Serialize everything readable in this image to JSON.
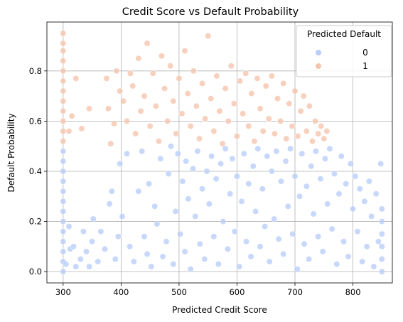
{
  "chart_data": {
    "type": "scatter",
    "title": "Credit Score vs Default Probability",
    "xlabel": "Predicted Credit Score",
    "ylabel": "Default Probability",
    "xlim": [
      272,
      868
    ],
    "ylim": [
      -0.045,
      0.995
    ],
    "xticks": [
      300,
      400,
      500,
      600,
      700,
      800
    ],
    "yticks": [
      0.0,
      0.2,
      0.4,
      0.6,
      0.8
    ],
    "ytick_labels": [
      "0.0",
      "0.2",
      "0.4",
      "0.6",
      "0.8"
    ],
    "grid": true,
    "legend": {
      "title": "Predicted Default",
      "placement": "top-right",
      "entries": [
        {
          "label": "0",
          "color": "#b8cdf8"
        },
        {
          "label": "1",
          "color": "#f5c4ac"
        }
      ]
    },
    "series": [
      {
        "name": "0",
        "color": "#b8cdf8",
        "points": [
          [
            300,
            0.0
          ],
          [
            300,
            0.04
          ],
          [
            300,
            0.08
          ],
          [
            300,
            0.12
          ],
          [
            300,
            0.16
          ],
          [
            300,
            0.2
          ],
          [
            300,
            0.24
          ],
          [
            300,
            0.28
          ],
          [
            300,
            0.32
          ],
          [
            300,
            0.36
          ],
          [
            300,
            0.4
          ],
          [
            300,
            0.44
          ],
          [
            300,
            0.48
          ],
          [
            305,
            0.03
          ],
          [
            310,
            0.18
          ],
          [
            312,
            0.09
          ],
          [
            318,
            0.1
          ],
          [
            322,
            0.02
          ],
          [
            330,
            0.05
          ],
          [
            335,
            0.16
          ],
          [
            340,
            0.08
          ],
          [
            345,
            0.02
          ],
          [
            350,
            0.12
          ],
          [
            352,
            0.21
          ],
          [
            360,
            0.04
          ],
          [
            365,
            0.16
          ],
          [
            372,
            0.09
          ],
          [
            380,
            0.27
          ],
          [
            384,
            0.32
          ],
          [
            390,
            0.05
          ],
          [
            395,
            0.14
          ],
          [
            398,
            0.43
          ],
          [
            402,
            0.22
          ],
          [
            410,
            0.47
          ],
          [
            415,
            0.1
          ],
          [
            422,
            0.04
          ],
          [
            430,
            0.32
          ],
          [
            436,
            0.48
          ],
          [
            440,
            0.14
          ],
          [
            445,
            0.07
          ],
          [
            448,
            0.35
          ],
          [
            452,
            0.02
          ],
          [
            458,
            0.26
          ],
          [
            462,
            0.19
          ],
          [
            468,
            0.45
          ],
          [
            472,
            0.06
          ],
          [
            478,
            0.12
          ],
          [
            482,
            0.39
          ],
          [
            486,
            0.5
          ],
          [
            490,
            0.03
          ],
          [
            494,
            0.24
          ],
          [
            498,
            0.47
          ],
          [
            502,
            0.15
          ],
          [
            506,
            0.36
          ],
          [
            510,
            0.08
          ],
          [
            512,
            0.44
          ],
          [
            516,
            0.29
          ],
          [
            520,
            0.01
          ],
          [
            524,
            0.41
          ],
          [
            528,
            0.22
          ],
          [
            532,
            0.48
          ],
          [
            536,
            0.11
          ],
          [
            540,
            0.33
          ],
          [
            544,
            0.05
          ],
          [
            548,
            0.4
          ],
          [
            552,
            0.27
          ],
          [
            556,
            0.46
          ],
          [
            560,
            0.14
          ],
          [
            564,
            0.37
          ],
          [
            568,
            0.03
          ],
          [
            572,
            0.43
          ],
          [
            576,
            0.2
          ],
          [
            580,
            0.49
          ],
          [
            584,
            0.09
          ],
          [
            588,
            0.31
          ],
          [
            592,
            0.45
          ],
          [
            596,
            0.16
          ],
          [
            600,
            0.38
          ],
          [
            604,
            0.02
          ],
          [
            608,
            0.28
          ],
          [
            612,
            0.47
          ],
          [
            616,
            0.12
          ],
          [
            620,
            0.35
          ],
          [
            624,
            0.06
          ],
          [
            628,
            0.42
          ],
          [
            632,
            0.24
          ],
          [
            636,
            0.49
          ],
          [
            640,
            0.1
          ],
          [
            644,
            0.33
          ],
          [
            648,
            0.18
          ],
          [
            652,
            0.46
          ],
          [
            656,
            0.04
          ],
          [
            660,
            0.4
          ],
          [
            664,
            0.21
          ],
          [
            668,
            0.48
          ],
          [
            672,
            0.13
          ],
          [
            676,
            0.36
          ],
          [
            680,
            0.07
          ],
          [
            684,
            0.44
          ],
          [
            688,
            0.26
          ],
          [
            692,
            0.49
          ],
          [
            696,
            0.15
          ],
          [
            700,
            0.38
          ],
          [
            704,
            0.01
          ],
          [
            708,
            0.3
          ],
          [
            712,
            0.47
          ],
          [
            716,
            0.11
          ],
          [
            720,
            0.34
          ],
          [
            724,
            0.05
          ],
          [
            728,
            0.42
          ],
          [
            732,
            0.23
          ],
          [
            736,
            0.48
          ],
          [
            740,
            0.14
          ],
          [
            744,
            0.37
          ],
          [
            748,
            0.08
          ],
          [
            752,
            0.45
          ],
          [
            756,
            0.27
          ],
          [
            760,
            0.49
          ],
          [
            764,
            0.17
          ],
          [
            768,
            0.39
          ],
          [
            772,
            0.03
          ],
          [
            776,
            0.31
          ],
          [
            780,
            0.46
          ],
          [
            784,
            0.12
          ],
          [
            788,
            0.35
          ],
          [
            792,
            0.06
          ],
          [
            796,
            0.43
          ],
          [
            800,
            0.25
          ],
          [
            804,
            0.38
          ],
          [
            808,
            0.16
          ],
          [
            812,
            0.33
          ],
          [
            816,
            0.04
          ],
          [
            820,
            0.28
          ],
          [
            824,
            0.1
          ],
          [
            828,
            0.36
          ],
          [
            832,
            0.22
          ],
          [
            836,
            0.02
          ],
          [
            840,
            0.31
          ],
          [
            844,
            0.12
          ],
          [
            848,
            0.43
          ],
          [
            850,
            0.0
          ],
          [
            850,
            0.05
          ],
          [
            850,
            0.1
          ],
          [
            850,
            0.15
          ],
          [
            850,
            0.2
          ],
          [
            850,
            0.25
          ]
        ]
      },
      {
        "name": "1",
        "color": "#f5c4ac",
        "points": [
          [
            300,
            0.52
          ],
          [
            300,
            0.56
          ],
          [
            300,
            0.6
          ],
          [
            300,
            0.64
          ],
          [
            300,
            0.68
          ],
          [
            300,
            0.72
          ],
          [
            300,
            0.76
          ],
          [
            300,
            0.8
          ],
          [
            300,
            0.84
          ],
          [
            300,
            0.88
          ],
          [
            300,
            0.91
          ],
          [
            300,
            0.95
          ],
          [
            310,
            0.56
          ],
          [
            315,
            0.62
          ],
          [
            322,
            0.77
          ],
          [
            332,
            0.57
          ],
          [
            345,
            0.65
          ],
          [
            375,
            0.77
          ],
          [
            378,
            0.65
          ],
          [
            382,
            0.51
          ],
          [
            388,
            0.59
          ],
          [
            392,
            0.8
          ],
          [
            398,
            0.72
          ],
          [
            404,
            0.68
          ],
          [
            410,
            0.6
          ],
          [
            416,
            0.79
          ],
          [
            420,
            0.74
          ],
          [
            425,
            0.55
          ],
          [
            430,
            0.85
          ],
          [
            434,
            0.64
          ],
          [
            440,
            0.7
          ],
          [
            445,
            0.91
          ],
          [
            450,
            0.58
          ],
          [
            455,
            0.79
          ],
          [
            460,
            0.66
          ],
          [
            465,
            0.52
          ],
          [
            470,
            0.86
          ],
          [
            475,
            0.73
          ],
          [
            480,
            0.6
          ],
          [
            485,
            0.82
          ],
          [
            490,
            0.68
          ],
          [
            495,
            0.55
          ],
          [
            500,
            0.77
          ],
          [
            505,
            0.63
          ],
          [
            510,
            0.88
          ],
          [
            515,
            0.71
          ],
          [
            520,
            0.58
          ],
          [
            525,
            0.8
          ],
          [
            530,
            0.66
          ],
          [
            535,
            0.53
          ],
          [
            540,
            0.75
          ],
          [
            545,
            0.61
          ],
          [
            550,
            0.94
          ],
          [
            555,
            0.69
          ],
          [
            560,
            0.56
          ],
          [
            565,
            0.78
          ],
          [
            570,
            0.64
          ],
          [
            575,
            0.51
          ],
          [
            580,
            0.73
          ],
          [
            585,
            0.6
          ],
          [
            590,
            0.82
          ],
          [
            595,
            0.67
          ],
          [
            600,
            0.54
          ],
          [
            605,
            0.76
          ],
          [
            610,
            0.63
          ],
          [
            615,
            0.79
          ],
          [
            620,
            0.58
          ],
          [
            625,
            0.71
          ],
          [
            630,
            0.52
          ],
          [
            635,
            0.77
          ],
          [
            640,
            0.65
          ],
          [
            645,
            0.56
          ],
          [
            650,
            0.74
          ],
          [
            655,
            0.61
          ],
          [
            660,
            0.78
          ],
          [
            665,
            0.55
          ],
          [
            670,
            0.69
          ],
          [
            675,
            0.6
          ],
          [
            680,
            0.75
          ],
          [
            685,
            0.53
          ],
          [
            690,
            0.67
          ],
          [
            695,
            0.58
          ],
          [
            700,
            0.72
          ],
          [
            705,
            0.54
          ],
          [
            710,
            0.64
          ],
          [
            715,
            0.7
          ],
          [
            720,
            0.56
          ],
          [
            725,
            0.66
          ],
          [
            730,
            0.52
          ],
          [
            735,
            0.6
          ],
          [
            740,
            0.55
          ],
          [
            745,
            0.58
          ],
          [
            750,
            0.53
          ],
          [
            755,
            0.56
          ]
        ]
      }
    ]
  }
}
